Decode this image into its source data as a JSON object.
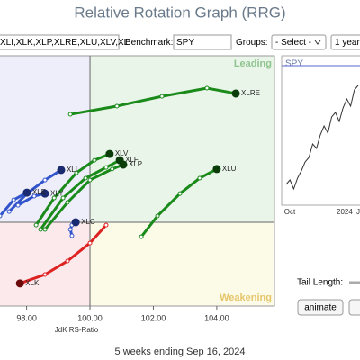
{
  "header": {
    "title": "Relative Rotation Graph (RRG)"
  },
  "controls": {
    "symbols": "XLI,XLK,XLP,XLRE,XLU,XLV,XL",
    "benchmark_label": "Benchmark:",
    "benchmark": "SPY",
    "groups_label": "Groups:",
    "groups": "- Select -",
    "period": "1 year"
  },
  "chart_data": {
    "type": "line",
    "x_label": "JdK RS-Ratio",
    "xlim": [
      97.16,
      105.82
    ],
    "ylim": [
      97.34,
      105.29
    ],
    "xticks": [
      {
        "value": 98,
        "label": "98.00"
      },
      {
        "value": 100,
        "label": "100.00"
      },
      {
        "value": 102,
        "label": "102.00"
      },
      {
        "value": 104,
        "label": "104.00"
      }
    ],
    "center": {
      "x": 100,
      "y": 100
    },
    "quadrant_labels": {
      "leading": "Leading",
      "weakening": "Weakening"
    },
    "series": [
      {
        "name": "XLRE",
        "color": "#1a8a1a",
        "x": [
          99.38,
          100.85,
          102.27,
          103.69,
          104.6
        ],
        "values": [
          103.43,
          103.69,
          104.0,
          104.26,
          104.09
        ]
      },
      {
        "name": "XLU",
        "color": "#1a8a1a",
        "x": [
          101.62,
          102.13,
          102.84,
          103.46,
          104.0
        ],
        "values": [
          99.54,
          100.2,
          100.91,
          101.4,
          101.69
        ]
      },
      {
        "name": "XLV",
        "color": "#1a8a1a",
        "x": [
          98.3,
          98.87,
          99.57,
          100.14,
          100.62
        ],
        "values": [
          99.91,
          100.77,
          101.57,
          101.97,
          102.17
        ]
      },
      {
        "name": "XLF",
        "color": "#1a8a1a",
        "x": [
          98.44,
          99.15,
          99.86,
          100.51,
          100.94
        ],
        "values": [
          99.77,
          100.77,
          101.4,
          101.74,
          101.97
        ]
      },
      {
        "name": "XLP",
        "color": "#1a8a1a",
        "x": [
          98.58,
          99.29,
          100.0,
          100.7,
          101.05
        ],
        "values": [
          99.77,
          100.63,
          101.34,
          101.69,
          101.83
        ]
      },
      {
        "name": "XLI",
        "color": "#3355cc",
        "x": [
          97.45,
          98.01,
          98.58,
          99.09
        ],
        "values": [
          100.34,
          100.91,
          101.34,
          101.66
        ]
      },
      {
        "name": "XLY",
        "color": "#3355cc",
        "x": [
          97.73,
          98.24,
          98.58
        ],
        "values": [
          100.54,
          100.83,
          100.91
        ]
      },
      {
        "name": "XLE",
        "color": "#3355cc",
        "x": [
          97.16,
          97.59,
          98.01
        ],
        "values": [
          100.2,
          100.71,
          100.94
        ]
      },
      {
        "name": "XLC",
        "color": "#3355cc",
        "x": [
          99.43,
          99.38,
          99.43,
          99.55
        ],
        "values": [
          99.57,
          99.77,
          99.91,
          100.0
        ]
      },
      {
        "name": "XLK",
        "color": "#dd2222",
        "x": [
          100.51,
          100.0,
          99.29,
          98.58,
          97.79
        ],
        "values": [
          99.91,
          99.34,
          98.77,
          98.34,
          98.06
        ]
      }
    ]
  },
  "spy_chart": {
    "type": "line",
    "title": "SPY",
    "color": "#333333",
    "ylim": [
      0,
      166
    ],
    "values": [
      23,
      28,
      18,
      30,
      38,
      48,
      53,
      68,
      63,
      78,
      88,
      80,
      98,
      103,
      93,
      108,
      118,
      110,
      128,
      133
    ],
    "x_labels": [
      "Oct",
      "2024",
      "Jul"
    ]
  },
  "tail_length_label": "Tail Length:",
  "animate": "animate",
  "footer": "5 weeks ending Sep 16, 2024"
}
